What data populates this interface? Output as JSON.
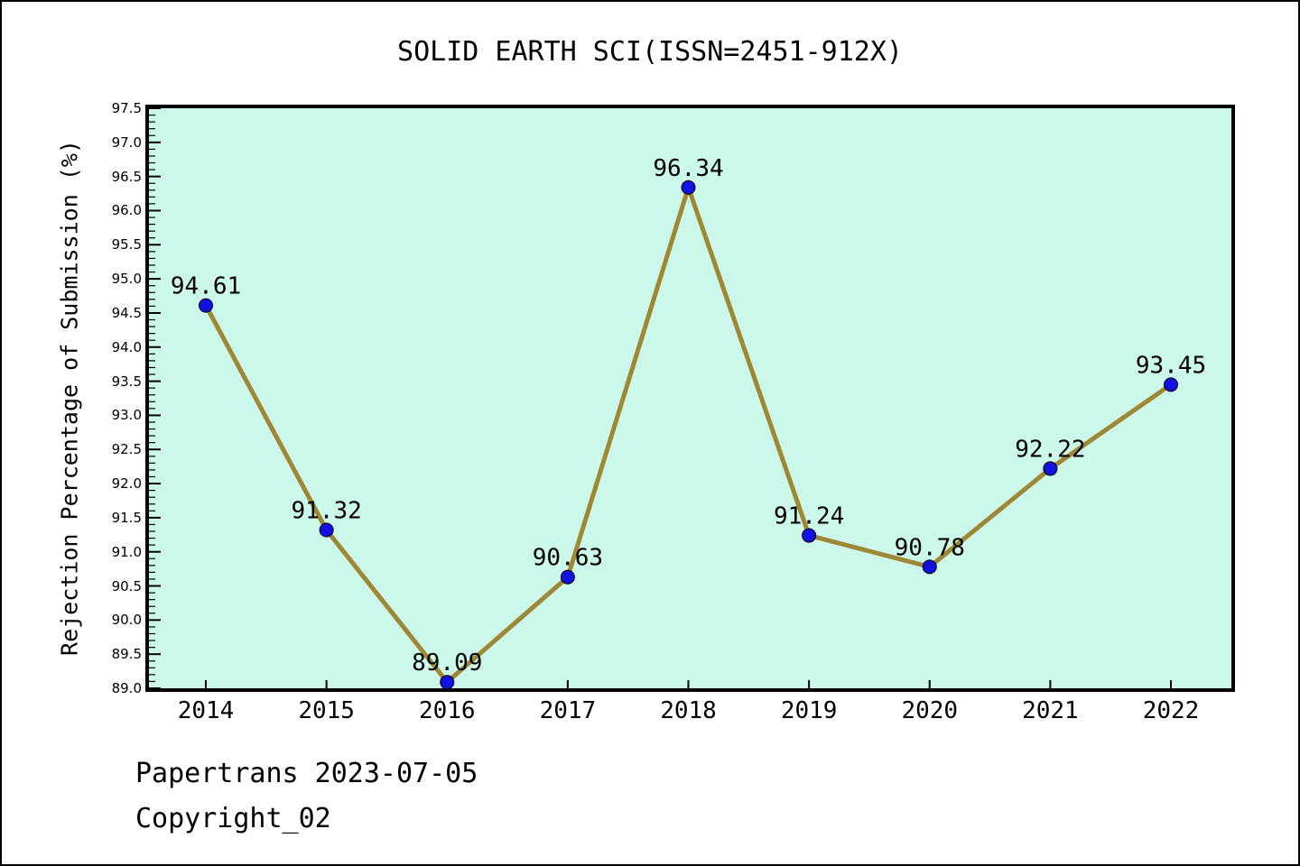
{
  "chart_data": {
    "type": "line",
    "title": "SOLID EARTH SCI(ISSN=2451-912X)",
    "xlabel": "",
    "ylabel": "Rejection Percentage of Submission (%)",
    "categories": [
      "2014",
      "2015",
      "2016",
      "2017",
      "2018",
      "2019",
      "2020",
      "2021",
      "2022"
    ],
    "series": [
      {
        "name": "Rejection Percentage of Submission",
        "values": [
          94.61,
          91.32,
          89.09,
          90.63,
          96.34,
          91.24,
          90.78,
          92.22,
          93.45
        ]
      }
    ],
    "point_labels": [
      "94.61",
      "91.32",
      "89.09",
      "90.63",
      "96.34",
      "91.24",
      "90.78",
      "92.22",
      "93.45"
    ],
    "ylim": [
      89.0,
      97.5
    ],
    "ytick_step": 0.5,
    "yminor_step": 0.1,
    "ytick_labels": [
      "89.0",
      "89.5",
      "90.0",
      "90.5",
      "91.0",
      "91.5",
      "92.0",
      "92.5",
      "93.0",
      "93.5",
      "94.0",
      "94.5",
      "95.0",
      "95.5",
      "96.0",
      "96.5",
      "97.0",
      "97.5"
    ],
    "grid": false,
    "legend": null,
    "colors": {
      "plot_bg": "#cbf8ea",
      "line": "#9f8733",
      "marker_fill": "#1212e0",
      "marker_edge": "#000000",
      "axis": "#000000",
      "text": "#000000"
    }
  },
  "footer": {
    "line1": "Papertrans 2023-07-05",
    "line2": "Copyright_02"
  }
}
